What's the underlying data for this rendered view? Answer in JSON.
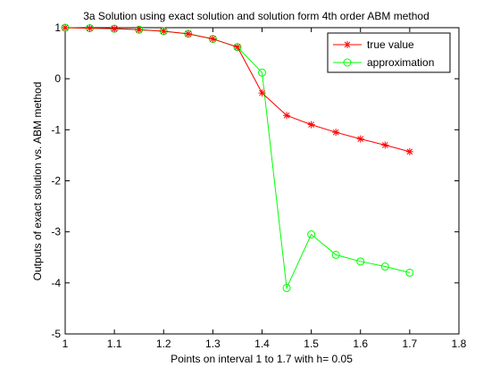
{
  "chart_data": {
    "type": "line",
    "title": "3a Solution using exact solution and solution form 4th order ABM method",
    "xlabel": "Points on interval 1 to 1.7 with h= 0.05",
    "ylabel": "Outputs of exact solution vs. ABM method",
    "xlim": [
      1,
      1.8
    ],
    "ylim": [
      -5,
      1
    ],
    "xticks": [
      "1",
      "1.1",
      "1.2",
      "1.3",
      "1.4",
      "1.5",
      "1.6",
      "1.7",
      "1.8"
    ],
    "yticks": [
      "-5",
      "-4",
      "-3",
      "-2",
      "-1",
      "0",
      "1"
    ],
    "grid": false,
    "legend_position": "top-right",
    "x": [
      1.0,
      1.05,
      1.1,
      1.15,
      1.2,
      1.25,
      1.3,
      1.35,
      1.4,
      1.45,
      1.5,
      1.55,
      1.6,
      1.65,
      1.7
    ],
    "series": [
      {
        "name": "true value",
        "color": "#ff0000",
        "marker": "asterisk",
        "values": [
          1.0,
          0.99,
          0.98,
          0.96,
          0.93,
          0.88,
          0.78,
          0.62,
          -0.28,
          -0.72,
          -0.9,
          -1.05,
          -1.18,
          -1.3,
          -1.43
        ]
      },
      {
        "name": "approximation",
        "color": "#00ff00",
        "marker": "circle",
        "values": [
          1.0,
          0.99,
          0.98,
          0.96,
          0.93,
          0.88,
          0.78,
          0.62,
          0.12,
          -4.1,
          -3.05,
          -3.45,
          -3.58,
          -3.68,
          -3.8
        ]
      }
    ]
  }
}
